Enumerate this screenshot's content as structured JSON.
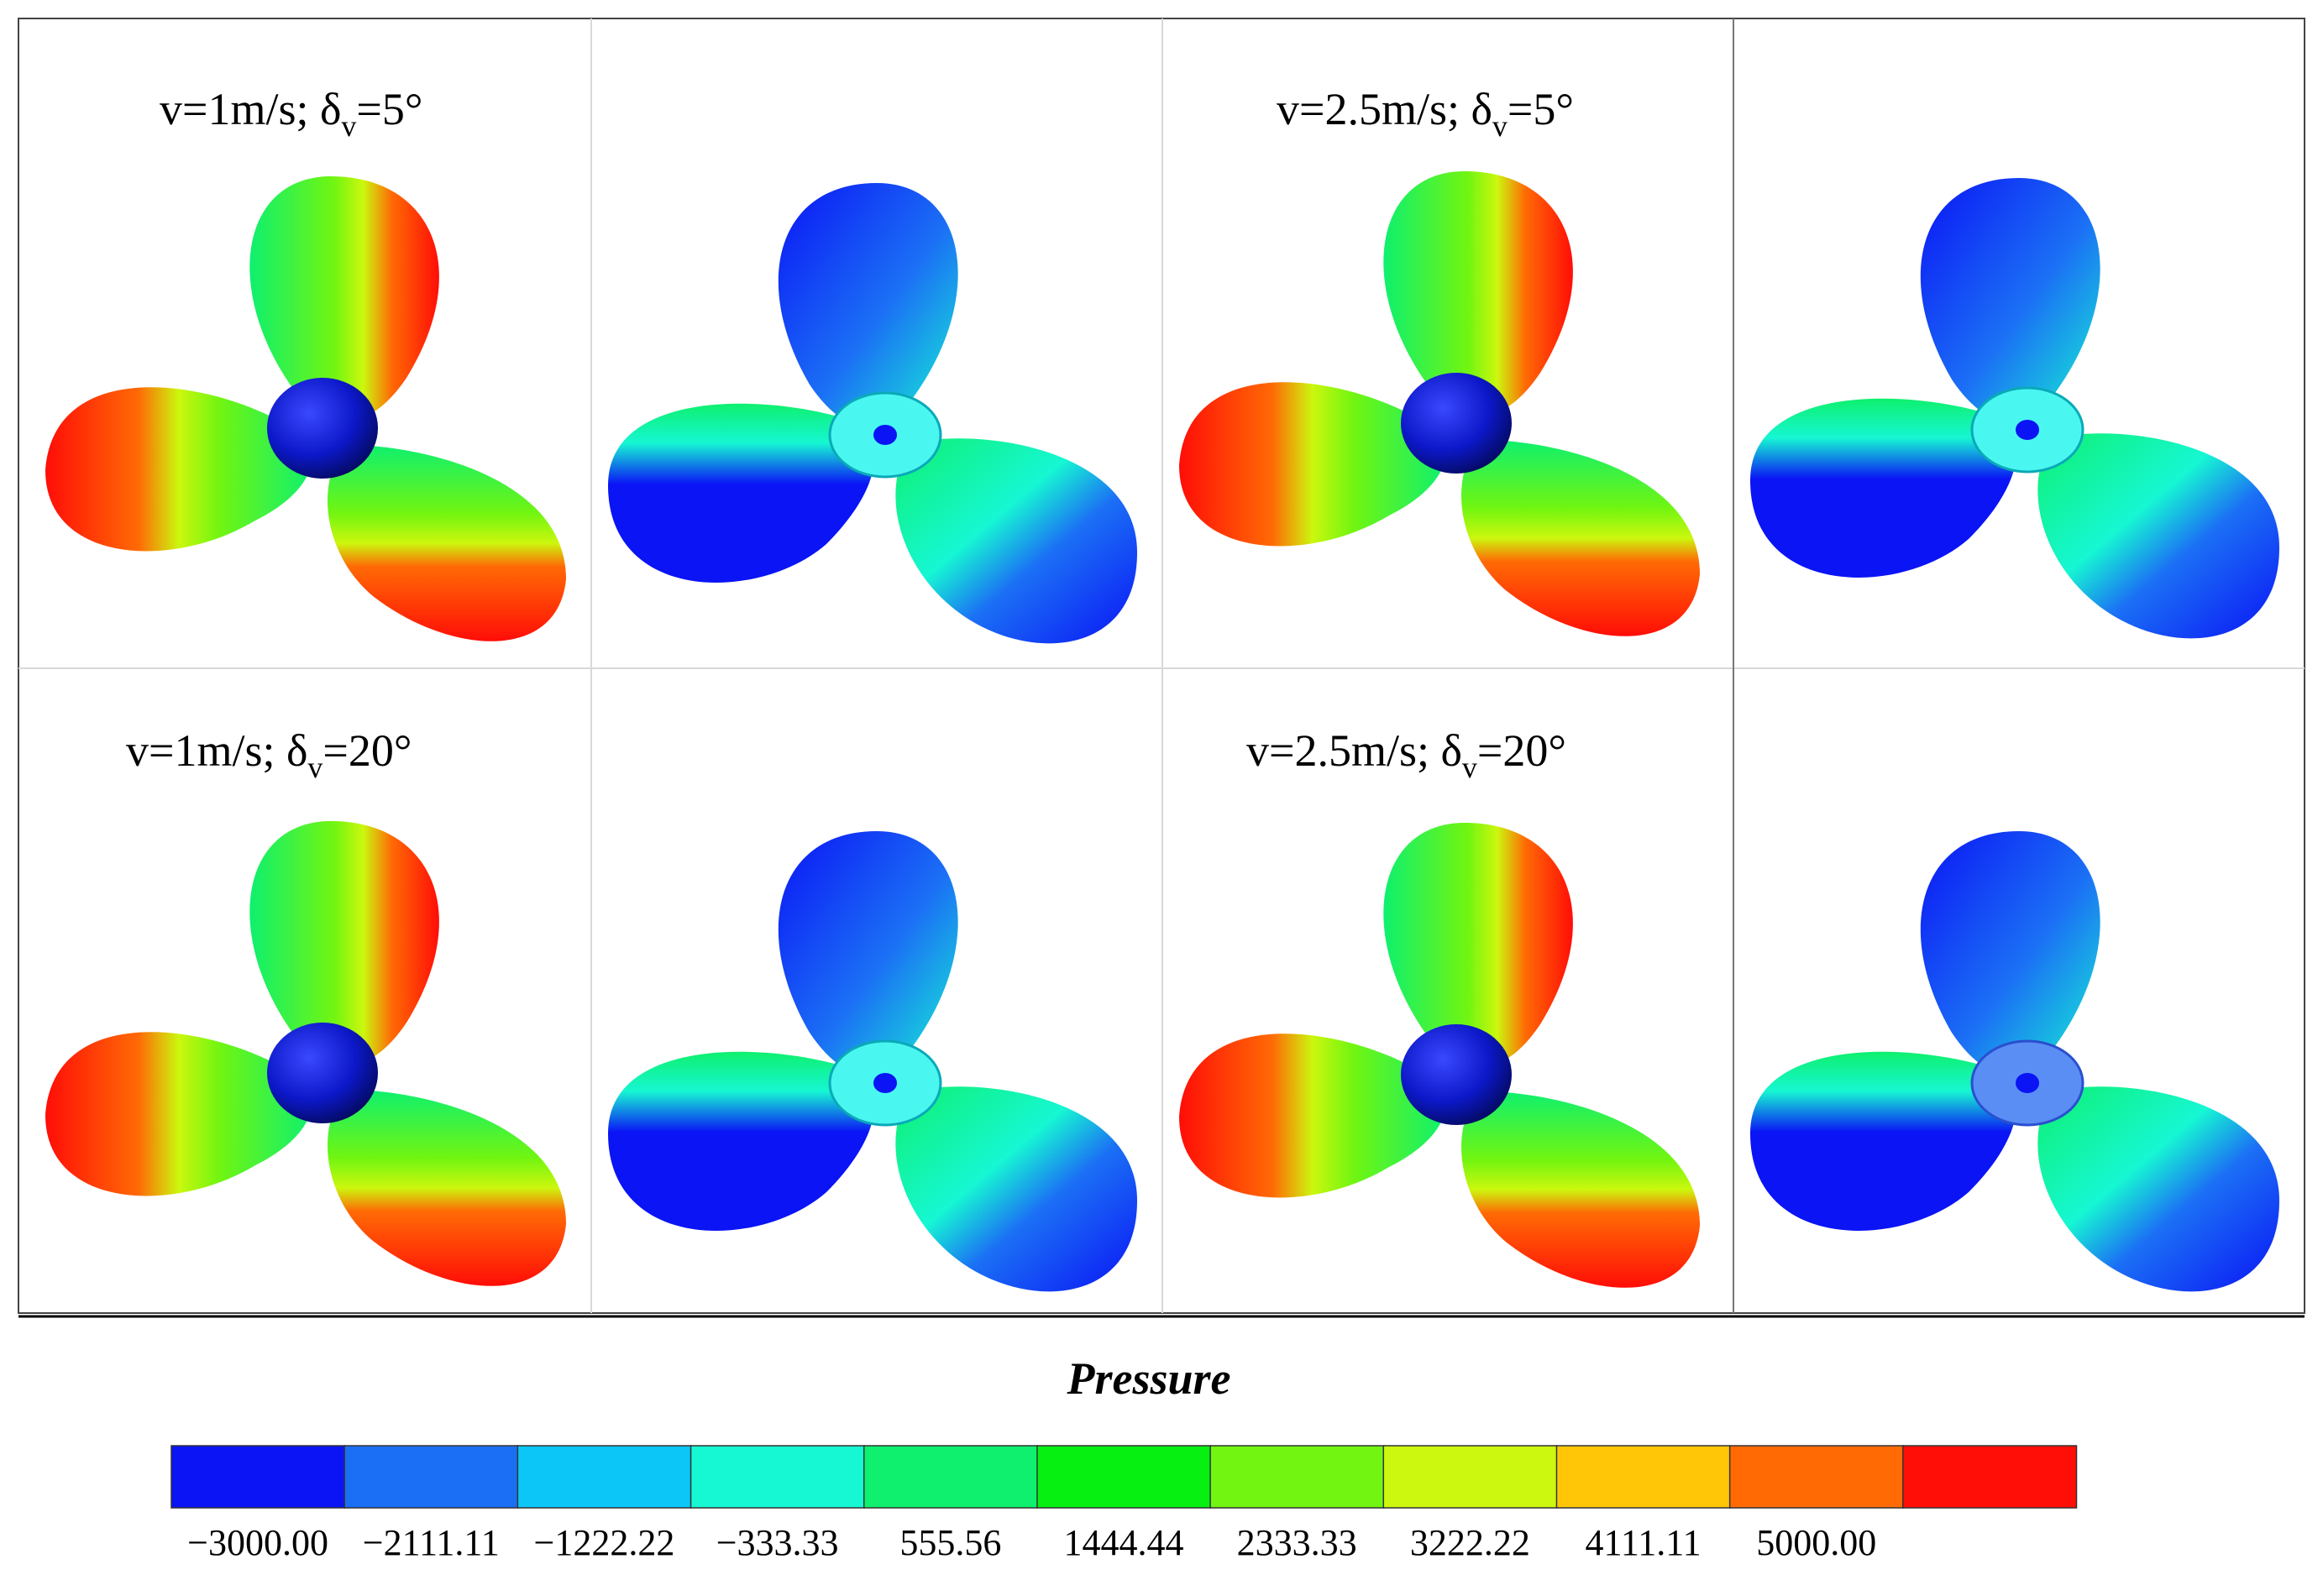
{
  "panels": [
    {
      "label": "v=1m/s; δ",
      "subscript": "v",
      "angle": "=5°",
      "view": "pressure-side",
      "level": 1
    },
    {
      "view": "suction-side",
      "level": 1
    },
    {
      "label": "v=2.5m/s; δ",
      "subscript": "v",
      "angle": "=5°",
      "view": "pressure-side",
      "level": 2
    },
    {
      "view": "suction-side",
      "level": 2
    },
    {
      "label": "v=1m/s; δ",
      "subscript": "v",
      "angle": "=20°",
      "view": "pressure-side",
      "level": 3
    },
    {
      "view": "suction-side",
      "level": 3
    },
    {
      "label": "v=2.5m/s; δ",
      "subscript": "v",
      "angle": "=20°",
      "view": "pressure-side",
      "level": 4
    },
    {
      "view": "suction-side",
      "level": 4
    }
  ],
  "legend": {
    "title": "Pressure",
    "ticks": [
      "−3000.00",
      "−2111.11",
      "−1222.22",
      "−333.33",
      "555.56",
      "1444.44",
      "2333.33",
      "3222.22",
      "4111.11",
      "5000.00"
    ],
    "colors": [
      "#0a14f5",
      "#1b6ff5",
      "#0bc6f7",
      "#16f7d3",
      "#0ef06e",
      "#06f012",
      "#72f510",
      "#ccf70e",
      "#ffc607",
      "#ff6a05",
      "#ff0d07"
    ]
  }
}
